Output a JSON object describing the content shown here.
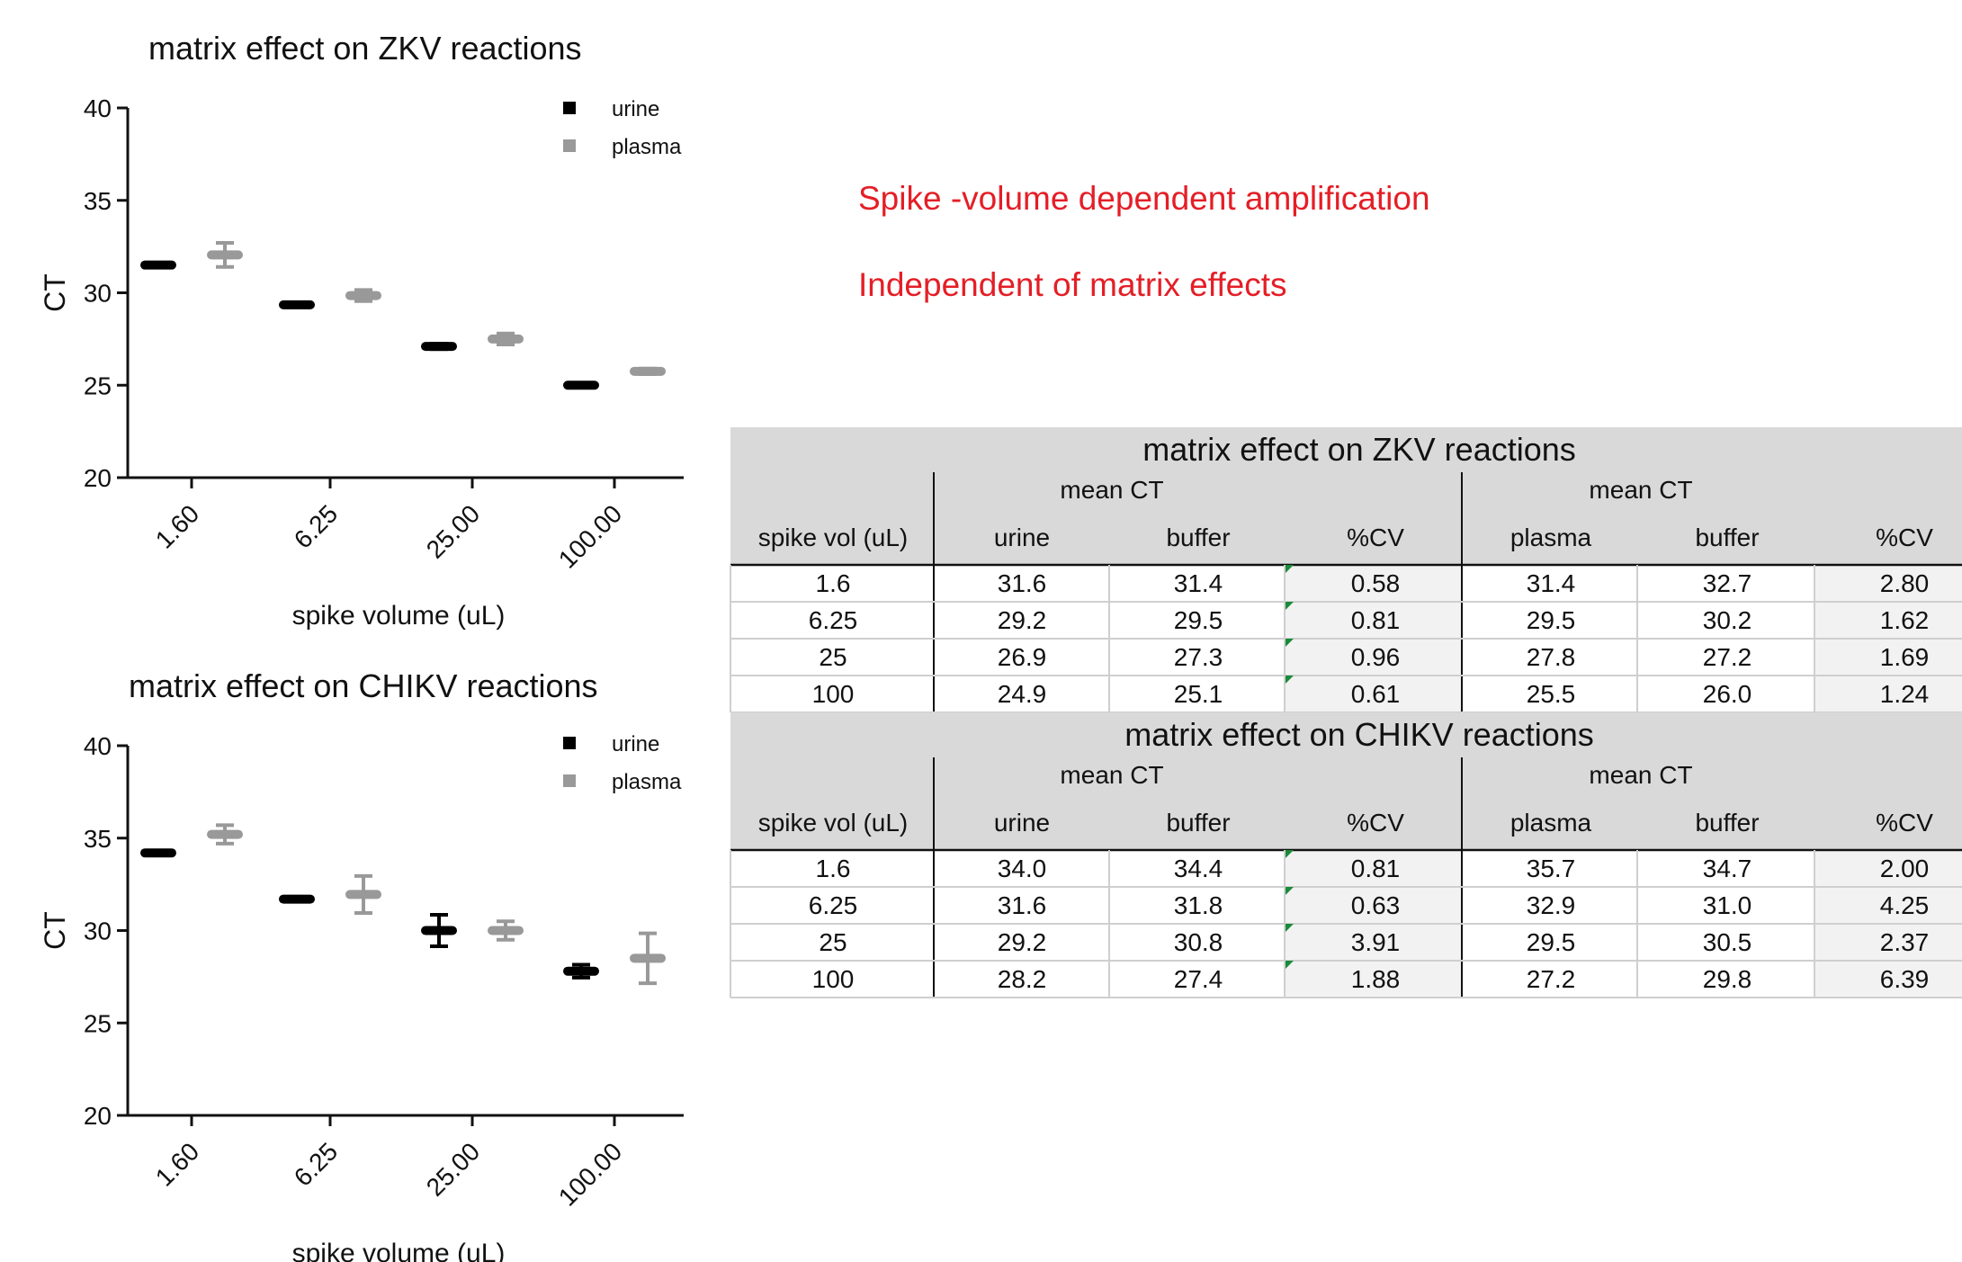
{
  "notes": {
    "line1": "Spike -volume dependent amplification",
    "line2": "Independent of matrix effects"
  },
  "chart_data": [
    {
      "type": "scatter",
      "title": "matrix effect on ZKV reactions",
      "xlabel": "spike volume (uL)",
      "ylabel": "CT",
      "categories": [
        "1.60",
        "6.25",
        "25.00",
        "100.00"
      ],
      "ylim": [
        20,
        40
      ],
      "yticks": [
        20,
        25,
        30,
        35,
        40
      ],
      "grid": false,
      "legend_position": "top-right",
      "series": [
        {
          "name": "urine",
          "color": "#000000",
          "values": [
            31.5,
            29.35,
            27.1,
            25.0
          ],
          "err": [
            0.1,
            0.1,
            0.15,
            0.1
          ]
        },
        {
          "name": "plasma",
          "color": "#999999",
          "values": [
            32.05,
            29.85,
            27.5,
            25.75
          ],
          "err": [
            0.65,
            0.3,
            0.3,
            0.15
          ]
        }
      ]
    },
    {
      "type": "scatter",
      "title": "matrix effect on CHIKV reactions",
      "xlabel": "spike volume (uL)",
      "ylabel": "CT",
      "categories": [
        "1.60",
        "6.25",
        "25.00",
        "100.00"
      ],
      "ylim": [
        20,
        40
      ],
      "yticks": [
        20,
        25,
        30,
        35,
        40
      ],
      "grid": false,
      "legend_position": "top-right",
      "series": [
        {
          "name": "urine",
          "color": "#000000",
          "values": [
            34.2,
            31.7,
            30.0,
            27.8
          ],
          "err": [
            0.1,
            0.1,
            0.85,
            0.35
          ]
        },
        {
          "name": "plasma",
          "color": "#999999",
          "values": [
            35.2,
            31.95,
            30.0,
            28.5
          ],
          "err": [
            0.5,
            1.0,
            0.5,
            1.35
          ]
        }
      ]
    },
    {
      "type": "table",
      "title": "matrix effect on ZKV reactions",
      "group_headers": [
        "mean CT",
        "mean CT"
      ],
      "columns": [
        "spike vol (uL)",
        "urine",
        "buffer",
        "%CV",
        "plasma",
        "buffer",
        "%CV"
      ],
      "rows": [
        [
          "1.6",
          "31.6",
          "31.4",
          "0.58",
          "31.4",
          "32.7",
          "2.80"
        ],
        [
          "6.25",
          "29.2",
          "29.5",
          "0.81",
          "29.5",
          "30.2",
          "1.62"
        ],
        [
          "25",
          "26.9",
          "27.3",
          "0.96",
          "27.8",
          "27.2",
          "1.69"
        ],
        [
          "100",
          "24.9",
          "25.1",
          "0.61",
          "25.5",
          "26.0",
          "1.24"
        ]
      ]
    },
    {
      "type": "table",
      "title": "matrix effect on CHIKV reactions",
      "group_headers": [
        "mean CT",
        "mean CT"
      ],
      "columns": [
        "spike vol (uL)",
        "urine",
        "buffer",
        "%CV",
        "plasma",
        "buffer",
        "%CV"
      ],
      "rows": [
        [
          "1.6",
          "34.0",
          "34.4",
          "0.81",
          "35.7",
          "34.7",
          "2.00"
        ],
        [
          "6.25",
          "31.6",
          "31.8",
          "0.63",
          "32.9",
          "31.0",
          "4.25"
        ],
        [
          "25",
          "29.2",
          "30.8",
          "3.91",
          "29.5",
          "30.5",
          "2.37"
        ],
        [
          "100",
          "28.2",
          "27.4",
          "1.88",
          "27.2",
          "29.8",
          "6.39"
        ]
      ]
    }
  ]
}
